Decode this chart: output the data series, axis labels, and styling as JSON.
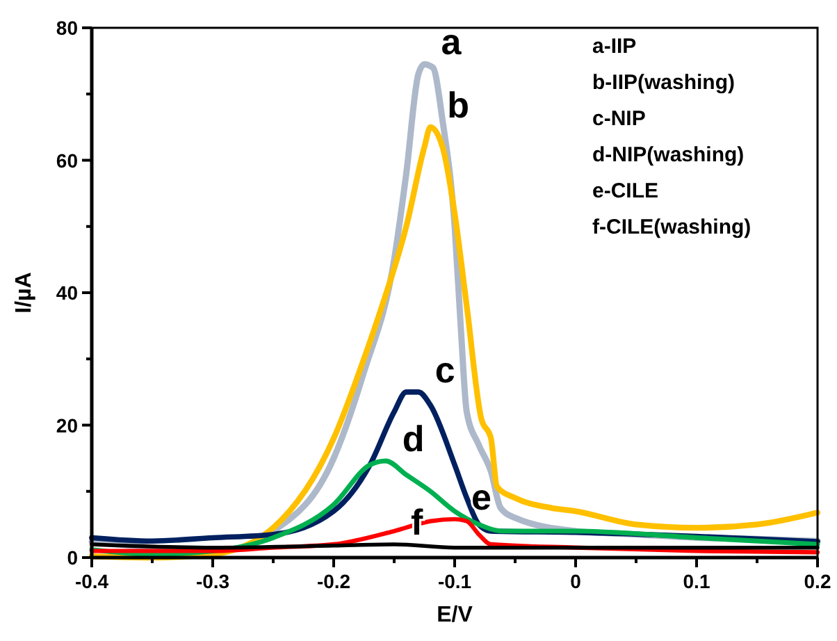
{
  "chart_data": {
    "type": "line",
    "xlabel": "E/V",
    "ylabel": "I/µA",
    "xlim": [
      -0.4,
      0.2
    ],
    "ylim": [
      0,
      80
    ],
    "xticks": [
      -0.4,
      {
        "value": -0.35,
        "label": null
      },
      -0.3,
      {
        "value": -0.25,
        "label": null
      },
      -0.2,
      {
        "value": -0.15,
        "label": null
      },
      -0.1,
      {
        "value": -0.05,
        "label": null
      },
      0,
      {
        "value": 0.05,
        "label": null
      },
      0.1,
      {
        "value": 0.15,
        "label": null
      },
      0.2
    ],
    "yticks": [
      0,
      {
        "value": 10,
        "label": null
      },
      20,
      {
        "value": 30,
        "label": null
      },
      40,
      {
        "value": 50,
        "label": null
      },
      60,
      {
        "value": 70,
        "label": null
      },
      80
    ],
    "grid": false,
    "marker": "none",
    "line_style": "solid",
    "series": [
      {
        "name": "a",
        "color": "#adb9ca",
        "x": [
          -0.4,
          -0.35,
          -0.3,
          -0.25,
          -0.2,
          -0.175,
          -0.15,
          -0.14,
          -0.13,
          -0.125,
          -0.118,
          -0.11,
          -0.1,
          -0.095,
          -0.09,
          -0.08,
          -0.07,
          -0.062,
          -0.05,
          0,
          0.05,
          0.1,
          0.15,
          0.2
        ],
        "values": [
          2.4,
          1.5,
          0.8,
          4,
          15,
          28,
          45,
          58,
          73,
          74.5,
          74,
          66,
          50,
          35,
          22,
          17,
          13,
          7.5,
          6,
          4,
          3.5,
          3,
          2.8,
          2.5
        ]
      },
      {
        "name": "b",
        "color": "#ffc000",
        "x": [
          -0.4,
          -0.35,
          -0.3,
          -0.25,
          -0.2,
          -0.175,
          -0.16,
          -0.14,
          -0.125,
          -0.12,
          -0.11,
          -0.1,
          -0.09,
          -0.078,
          -0.07,
          -0.065,
          -0.05,
          -0.02,
          0,
          0.05,
          0.1,
          0.15,
          0.2
        ],
        "values": [
          0.2,
          0,
          0.5,
          4.5,
          18,
          30,
          38,
          50,
          62,
          65,
          62,
          52,
          38,
          21,
          18,
          10.7,
          9,
          7.5,
          7,
          5,
          4.5,
          5,
          6.8
        ]
      },
      {
        "name": "c",
        "color": "#002060",
        "x": [
          -0.4,
          -0.35,
          -0.3,
          -0.25,
          -0.2,
          -0.17,
          -0.15,
          -0.14,
          -0.13,
          -0.12,
          -0.1,
          -0.09,
          -0.08,
          -0.07,
          0,
          0.1,
          0.2
        ],
        "values": [
          3,
          2.5,
          3,
          3.5,
          7,
          14,
          22,
          25,
          25,
          23,
          14,
          9,
          5,
          4,
          3.8,
          3.2,
          2.4
        ]
      },
      {
        "name": "d",
        "color": "#00b050",
        "x": [
          -0.4,
          -0.35,
          -0.3,
          -0.25,
          -0.2,
          -0.17,
          -0.157,
          -0.14,
          -0.12,
          -0.1,
          -0.08,
          -0.06,
          0,
          0.1,
          0.2
        ],
        "values": [
          1.2,
          0.5,
          1,
          3,
          8,
          14,
          14.6,
          12.5,
          10,
          7,
          5,
          4,
          4,
          3,
          2
        ]
      },
      {
        "name": "e",
        "color": "#ff0000",
        "x": [
          -0.4,
          -0.3,
          -0.25,
          -0.2,
          -0.15,
          -0.12,
          -0.1,
          -0.09,
          -0.08,
          -0.07,
          0,
          0.1,
          0.2
        ],
        "values": [
          1,
          1,
          1.5,
          2,
          4,
          5.5,
          5.8,
          5.5,
          3.5,
          2,
          1.5,
          1,
          0.8
        ]
      },
      {
        "name": "f",
        "color": "#000000",
        "x": [
          -0.4,
          -0.3,
          -0.2,
          -0.15,
          -0.1,
          0,
          0.2
        ],
        "values": [
          2,
          1.5,
          1.8,
          2,
          1.5,
          1.5,
          1.5
        ]
      }
    ],
    "annotations": [
      "a-IIP",
      "b-IIP(washing)",
      "c-NIP",
      "d-NIP(washing)",
      "e-CILE",
      "f-CILE(washing)"
    ]
  }
}
